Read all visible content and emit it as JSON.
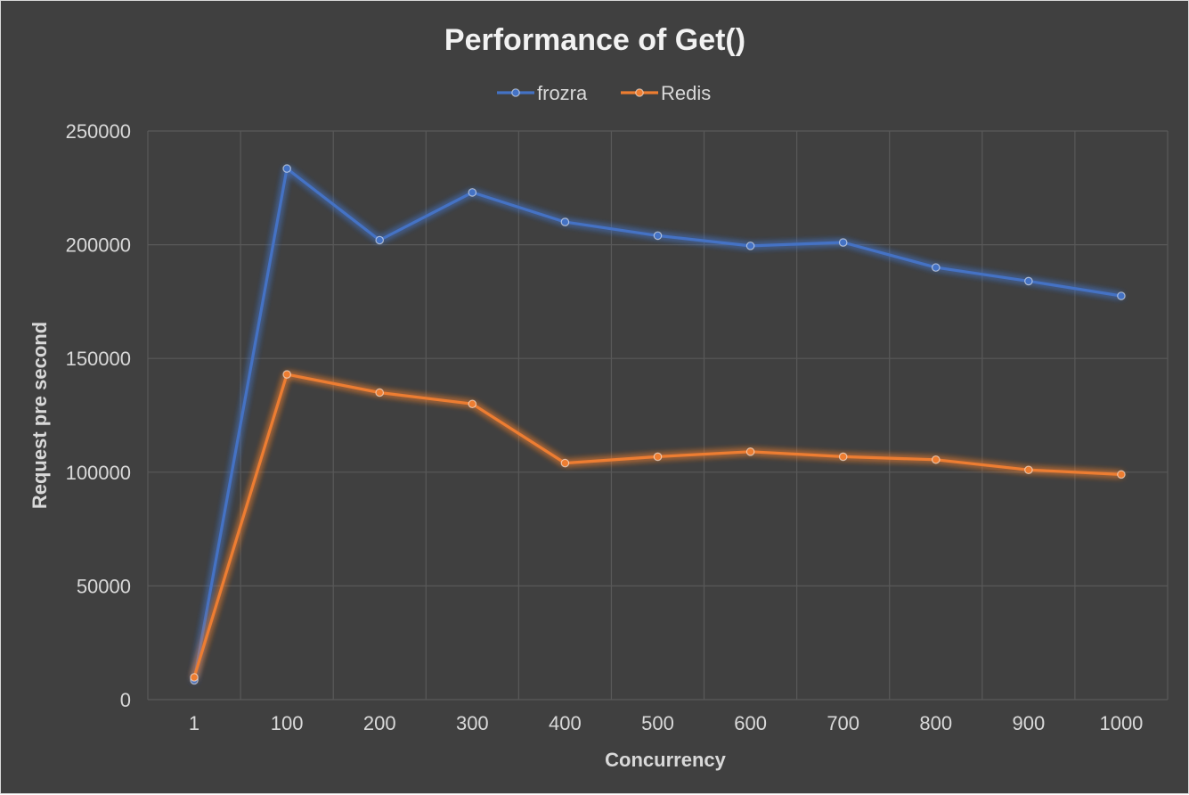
{
  "chart_data": {
    "type": "line",
    "title": "Performance of Get()",
    "xlabel": "Concurrency",
    "ylabel": "Request pre second",
    "categories": [
      "1",
      "100",
      "200",
      "300",
      "400",
      "500",
      "600",
      "700",
      "800",
      "900",
      "1000"
    ],
    "ylim": [
      0,
      250000
    ],
    "yticks": [
      "0",
      "50000",
      "100000",
      "150000",
      "200000",
      "250000"
    ],
    "grid": true,
    "legend_position": "top",
    "series": [
      {
        "name": "frozra",
        "color": "#4472c4",
        "values": [
          8500,
          233500,
          202000,
          223000,
          210000,
          204000,
          199500,
          201000,
          190000,
          184000,
          177500
        ]
      },
      {
        "name": "Redis",
        "color": "#ed7d31",
        "values": [
          9800,
          143000,
          135000,
          130000,
          104000,
          106800,
          109000,
          106800,
          105500,
          101000,
          99000
        ]
      }
    ]
  }
}
